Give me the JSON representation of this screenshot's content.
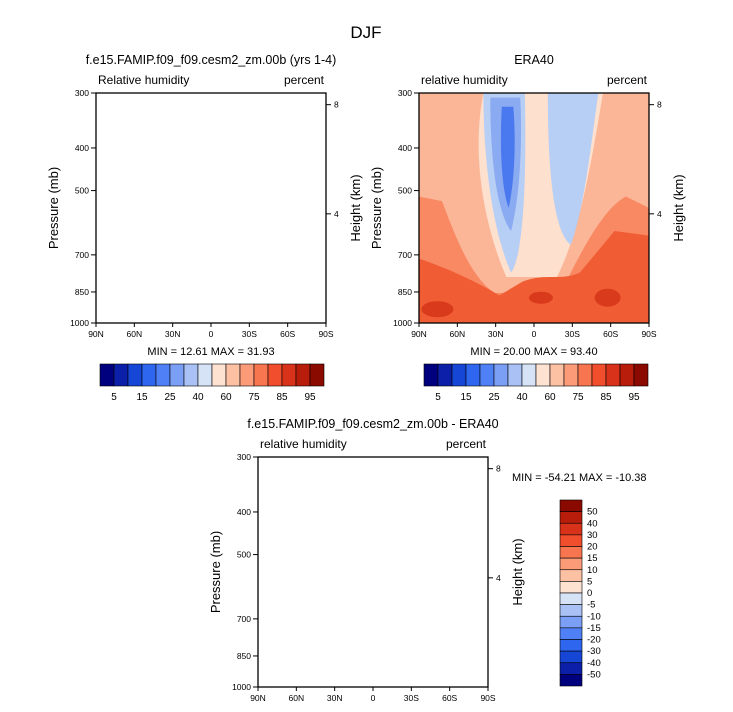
{
  "figure_title": "DJF",
  "colors": {
    "diverging_palette": [
      "#00007f",
      "#0b1fa8",
      "#1646d6",
      "#2f66f0",
      "#4f80f5",
      "#7b9ff5",
      "#a9c1f5",
      "#d6e3f7",
      "#fde2d2",
      "#fcc0a3",
      "#fb9b78",
      "#f8764f",
      "#f04e2c",
      "#d9321a",
      "#b81d0b",
      "#8b0a00"
    ],
    "axis": "#000000",
    "background": "#ffffff"
  },
  "chart_data": [
    {
      "type": "heatmap",
      "panel": "model",
      "title": "f.e15.FAMIP.f09_f09.cesm2_zm.00b (yrs 1-4)",
      "left_label": "Relative humidity",
      "right_label": "percent",
      "ylabel": "Pressure (mb)",
      "ylabel_right": "Height (km)",
      "x_ticks": [
        "90N",
        "60N",
        "30N",
        "0",
        "30S",
        "60S",
        "90S"
      ],
      "y_ticks": [
        300,
        400,
        500,
        700,
        850,
        1000
      ],
      "y_range_mb": [
        1000,
        300
      ],
      "y_right_ticks": [
        8,
        4
      ],
      "stats": "MIN =  12.61   MAX =  31.93",
      "min": 12.61,
      "max": 31.93,
      "filled": false,
      "colorbar": {
        "orientation": "horizontal",
        "labels": [
          "5",
          "15",
          "25",
          "40",
          "60",
          "75",
          "85",
          "95"
        ]
      }
    },
    {
      "type": "heatmap",
      "panel": "obs",
      "title": "ERA40",
      "left_label": "relative humidity",
      "right_label": "percent",
      "ylabel": "Pressure (mb)",
      "ylabel_right": "Height (km)",
      "x_ticks": [
        "90N",
        "60N",
        "30N",
        "0",
        "30S",
        "60S",
        "90S"
      ],
      "y_ticks": [
        300,
        400,
        500,
        700,
        850,
        1000
      ],
      "y_range_mb": [
        1000,
        300
      ],
      "y_right_ticks": [
        8,
        4
      ],
      "stats": "MIN =  20.00   MAX =  93.40",
      "min": 20.0,
      "max": 93.4,
      "filled": true,
      "colorbar": {
        "orientation": "horizontal",
        "labels": [
          "5",
          "15",
          "25",
          "40",
          "60",
          "75",
          "85",
          "95"
        ]
      }
    },
    {
      "type": "heatmap",
      "panel": "difference",
      "title": "f.e15.FAMIP.f09_f09.cesm2_zm.00b - ERA40",
      "left_label": "relative humidity",
      "right_label": "percent",
      "ylabel": "Pressure (mb)",
      "ylabel_right": "Height (km)",
      "x_ticks": [
        "90N",
        "60N",
        "30N",
        "0",
        "30S",
        "60S",
        "90S"
      ],
      "y_ticks": [
        300,
        400,
        500,
        700,
        850,
        1000
      ],
      "y_range_mb": [
        1000,
        300
      ],
      "y_right_ticks": [
        8,
        4
      ],
      "stats": "MIN = -54.21   MAX = -10.38",
      "min": -54.21,
      "max": -10.38,
      "filled": false,
      "colorbar": {
        "orientation": "vertical",
        "labels": [
          "50",
          "40",
          "30",
          "20",
          "15",
          "10",
          "5",
          "0",
          "-5",
          "-10",
          "-15",
          "-20",
          "-30",
          "-40",
          "-50"
        ]
      }
    }
  ]
}
